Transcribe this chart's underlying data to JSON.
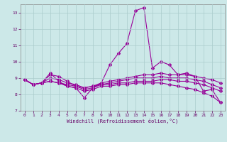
{
  "x": [
    0,
    1,
    2,
    3,
    4,
    5,
    6,
    7,
    8,
    9,
    10,
    11,
    12,
    13,
    14,
    15,
    16,
    17,
    18,
    19,
    20,
    21,
    22,
    23
  ],
  "line1": [
    8.9,
    8.6,
    8.7,
    9.3,
    8.8,
    8.5,
    8.4,
    7.8,
    8.4,
    8.7,
    9.8,
    10.5,
    11.1,
    13.1,
    13.3,
    9.6,
    10.0,
    9.8,
    9.2,
    9.3,
    9.1,
    8.2,
    8.3,
    7.5
  ],
  "line2": [
    8.9,
    8.6,
    8.7,
    9.2,
    9.1,
    8.8,
    8.5,
    8.4,
    8.5,
    8.7,
    8.8,
    8.9,
    9.0,
    9.1,
    9.2,
    9.2,
    9.3,
    9.2,
    9.2,
    9.2,
    9.1,
    9.0,
    8.9,
    8.7
  ],
  "line3": [
    8.9,
    8.6,
    8.7,
    9.0,
    8.9,
    8.7,
    8.6,
    8.4,
    8.5,
    8.6,
    8.7,
    8.8,
    8.9,
    9.0,
    9.0,
    9.0,
    9.1,
    9.0,
    9.0,
    9.0,
    8.9,
    8.8,
    8.6,
    8.4
  ],
  "line4": [
    8.9,
    8.6,
    8.7,
    8.8,
    8.7,
    8.6,
    8.5,
    8.3,
    8.4,
    8.6,
    8.6,
    8.7,
    8.7,
    8.8,
    8.8,
    8.8,
    8.9,
    8.9,
    8.8,
    8.8,
    8.7,
    8.6,
    8.4,
    8.2
  ],
  "line5": [
    8.9,
    8.6,
    8.7,
    8.8,
    8.7,
    8.5,
    8.4,
    8.2,
    8.3,
    8.5,
    8.5,
    8.6,
    8.6,
    8.7,
    8.7,
    8.7,
    8.7,
    8.6,
    8.5,
    8.4,
    8.3,
    8.1,
    7.9,
    7.5
  ],
  "color": "#990099",
  "bg_color": "#cce8e8",
  "grid_color": "#aacccc",
  "xlabel": "Windchill (Refroidissement éolien,°C)",
  "ylim": [
    7,
    13.5
  ],
  "xlim": [
    -0.5,
    23.5
  ],
  "yticks": [
    7,
    8,
    9,
    10,
    11,
    12,
    13
  ],
  "xticks": [
    0,
    1,
    2,
    3,
    4,
    5,
    6,
    7,
    8,
    9,
    10,
    11,
    12,
    13,
    14,
    15,
    16,
    17,
    18,
    19,
    20,
    21,
    22,
    23
  ]
}
